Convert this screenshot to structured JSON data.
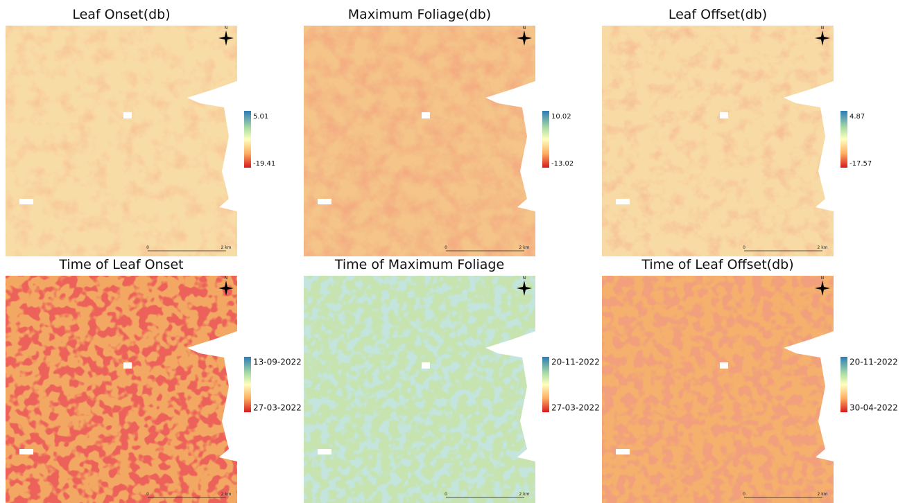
{
  "panels": [
    {
      "title": "Leaf Onset(db)",
      "legend_max": 5.01,
      "legend_min": -19.41,
      "scale_start": "0",
      "scale_end": "2 km",
      "north": "N"
    },
    {
      "title": "Maximum Foliage(db)",
      "legend_max": 10.02,
      "legend_min": -13.02,
      "scale_start": "0",
      "scale_end": "2 km",
      "north": "N"
    },
    {
      "title": "Leaf Offset(db)",
      "legend_max": 4.87,
      "legend_min": -17.57,
      "scale_start": "0",
      "scale_end": "2 km",
      "north": "N"
    },
    {
      "title": "Time of Leaf Onset",
      "legend_max": "13-09-2022",
      "legend_min": "27-03-2022",
      "scale_start": "0",
      "scale_end": "2 km",
      "north": "N"
    },
    {
      "title": "Time of Maximum Foliage",
      "legend_max": "20-11-2022",
      "legend_min": "27-03-2022",
      "scale_start": "0",
      "scale_end": "2 km",
      "north": "N"
    },
    {
      "title": "Time of Leaf Offset(db)",
      "legend_max": "20-11-2022",
      "legend_min": "30-04-2022",
      "scale_start": "0",
      "scale_end": "2 km",
      "north": "N"
    }
  ]
}
